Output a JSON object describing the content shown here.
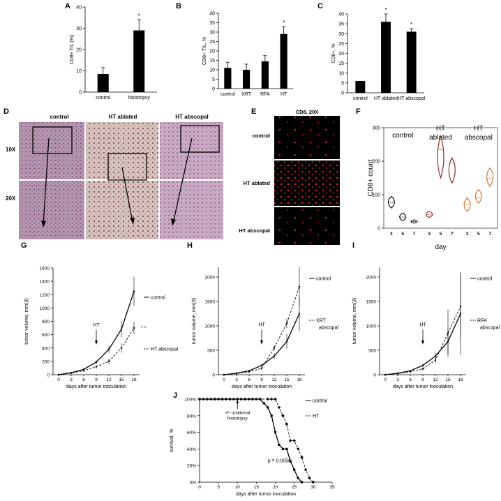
{
  "panels": {
    "A": {
      "label": "A"
    },
    "B": {
      "label": "B"
    },
    "C": {
      "label": "C"
    },
    "D": {
      "label": "D",
      "cols": [
        "control",
        "HT ablated",
        "HT abscopal"
      ],
      "rows": [
        "10X",
        "20X"
      ]
    },
    "E": {
      "label": "E",
      "title": "CD8, 20X",
      "rows": [
        "control",
        "HT ablated",
        "HT abscopal"
      ]
    },
    "F": {
      "label": "F"
    },
    "G": {
      "label": "G"
    },
    "H": {
      "label": "H"
    },
    "I": {
      "label": "I"
    },
    "J": {
      "label": "J"
    }
  },
  "chart_data": [
    {
      "id": "A",
      "type": "bar",
      "categories": [
        "control",
        "histotripsy"
      ],
      "values": [
        8.5,
        29
      ],
      "errors": [
        3,
        5
      ],
      "ylabel": "CD8+ TIL (%)",
      "ylim": [
        0,
        40
      ],
      "yticks": [
        0,
        10,
        20,
        30,
        40
      ],
      "markers": [
        "",
        "*"
      ]
    },
    {
      "id": "B",
      "type": "bar",
      "categories": [
        "control",
        "XRT",
        "RFA",
        "HT"
      ],
      "values": [
        11,
        10,
        14.5,
        29
      ],
      "errors": [
        3,
        3,
        3,
        4
      ],
      "ylabel": "CD8+ TIL, %",
      "ylim": [
        0,
        40
      ],
      "yticks": [
        0,
        5,
        10,
        15,
        20,
        25,
        30,
        35,
        40
      ],
      "markers": [
        "",
        "",
        "",
        "*"
      ]
    },
    {
      "id": "C",
      "type": "bar",
      "categories": [
        "control",
        "HT ablated",
        "HT abscopal"
      ],
      "values": [
        6,
        36,
        31
      ],
      "errors": [
        0,
        4,
        1.5
      ],
      "ylabel": "CD8+, %",
      "ylim": [
        0,
        40
      ],
      "yticks": [
        0,
        5,
        10,
        15,
        20,
        25,
        30,
        35,
        40
      ],
      "markers": [
        "",
        "*",
        "*"
      ]
    },
    {
      "id": "F",
      "type": "violin",
      "groups": [
        {
          "name": "control",
          "color": "#000000",
          "days": [
            "3",
            "5",
            "7"
          ],
          "low": [
            60,
            22,
            15
          ],
          "high": [
            95,
            45,
            25
          ],
          "mid": [
            77,
            33,
            20
          ]
        },
        {
          "name": "HT ablated",
          "color": "#8b1a1a",
          "days": [
            "3",
            "5",
            "7"
          ],
          "low": [
            32,
            150,
            135
          ],
          "high": [
            50,
            275,
            210
          ],
          "mid": [
            40,
            235,
            195
          ]
        },
        {
          "name": "HT abscopal",
          "color": "#d2691e",
          "days": [
            "3",
            "5",
            "7"
          ],
          "low": [
            50,
            75,
            125
          ],
          "high": [
            90,
            115,
            180
          ],
          "mid": [
            70,
            90,
            148
          ]
        }
      ],
      "group_titles": [
        [
          "control"
        ],
        [
          "HT",
          "ablated"
        ],
        [
          "HT",
          "abscopal"
        ]
      ],
      "ylabel": "CD8+ count",
      "xlabel": "day",
      "ylim": [
        0,
        300
      ],
      "yticks": [
        0,
        100,
        200,
        300
      ]
    },
    {
      "id": "G",
      "type": "line",
      "x": [
        0,
        3,
        6,
        9,
        12,
        15,
        18
      ],
      "series": [
        {
          "name": "control",
          "values": [
            0,
            30,
            80,
            190,
            380,
            680,
            1250
          ],
          "errors": [
            0,
            10,
            15,
            25,
            50,
            120,
            220
          ],
          "dashed": false
        },
        {
          "name": "HT abscopal",
          "values": [
            0,
            25,
            60,
            120,
            200,
            400,
            700
          ],
          "errors": [
            0,
            8,
            15,
            25,
            40,
            70,
            90
          ],
          "dashed": true
        }
      ],
      "marker": "* *",
      "annotation": "HT",
      "annotation_x": 9,
      "ylabel": "tumor volume, mm(3)",
      "xlabel": "days after tumor inoculation",
      "ylim": [
        0,
        1600
      ],
      "yticks": [
        0,
        200,
        400,
        600,
        800,
        1000,
        1200,
        1400,
        1600
      ]
    },
    {
      "id": "H",
      "type": "line",
      "x": [
        0,
        3,
        6,
        9,
        12,
        15,
        18
      ],
      "series": [
        {
          "name": "control",
          "values": [
            0,
            30,
            80,
            190,
            380,
            680,
            1250
          ],
          "errors": [
            0,
            10,
            15,
            30,
            60,
            150,
            350
          ],
          "dashed": false
        },
        {
          "name": "XRT abscopal",
          "values": [
            0,
            25,
            60,
            130,
            550,
            1050,
            1800
          ],
          "errors": [
            0,
            8,
            15,
            30,
            60,
            100,
            400
          ],
          "dashed": true
        }
      ],
      "legend_lines": [
        [
          "control"
        ],
        [
          "XRT",
          "abscopal"
        ]
      ],
      "annotation": "HT",
      "annotation_x": 9,
      "ylabel": "tumor volume, mm(3)",
      "xlabel": "days after tumor inoculation",
      "ylim": [
        0,
        2200
      ],
      "yticks": [
        0,
        500,
        1000,
        1500,
        2000
      ]
    },
    {
      "id": "I",
      "type": "line",
      "x": [
        0,
        3,
        6,
        9,
        12,
        15,
        18
      ],
      "series": [
        {
          "name": "control",
          "values": [
            0,
            30,
            80,
            190,
            380,
            680,
            1250
          ],
          "errors": [
            0,
            10,
            15,
            30,
            70,
            260,
            850
          ],
          "dashed": false
        },
        {
          "name": "RFA abscopal",
          "values": [
            0,
            25,
            60,
            120,
            300,
            850,
            1400
          ],
          "errors": [
            0,
            8,
            15,
            30,
            60,
            480,
            650
          ],
          "dashed": true
        }
      ],
      "legend_lines": [
        [
          "control"
        ],
        [
          "RFA",
          "abscopal"
        ]
      ],
      "annotation": "HT",
      "annotation_x": 9,
      "ylabel": "tumor volume, mm(3)",
      "xlabel": "days after tumor inoculation",
      "ylim": [
        0,
        2200
      ],
      "yticks": [
        0,
        500,
        1000,
        1500,
        2000
      ]
    },
    {
      "id": "J",
      "type": "line",
      "series": [
        {
          "name": "control",
          "dashed": false,
          "x": [
            0,
            1,
            2,
            3,
            4,
            5,
            6,
            7,
            8,
            9,
            10,
            11,
            12,
            13,
            14,
            15,
            16,
            17,
            18,
            19,
            20,
            21,
            22,
            23,
            24,
            25,
            26,
            27
          ],
          "values": [
            100,
            100,
            100,
            100,
            100,
            100,
            100,
            100,
            100,
            100,
            100,
            100,
            100,
            100,
            100,
            100,
            100,
            95,
            90,
            80,
            60,
            45,
            40,
            40,
            25,
            15,
            5,
            0
          ]
        },
        {
          "name": "HT",
          "dashed": true,
          "x": [
            0,
            2,
            4,
            6,
            8,
            10,
            12,
            14,
            16,
            18,
            19,
            20,
            21,
            22,
            23,
            24,
            25,
            26,
            27,
            28,
            29,
            30
          ],
          "values": [
            100,
            100,
            100,
            100,
            100,
            100,
            100,
            100,
            100,
            100,
            100,
            100,
            90,
            80,
            70,
            50,
            50,
            40,
            30,
            15,
            5,
            0
          ]
        }
      ],
      "annotation_lines": [
        "+/- unilateral",
        "histotripsy"
      ],
      "annotation_x": 10,
      "pvalue": "p = 0.0058",
      "ylabel": "survival, %",
      "xlabel": "days after tumor inoculation",
      "xlim": [
        0,
        35
      ],
      "xticks": [
        0,
        5,
        10,
        15,
        20,
        25,
        30,
        35
      ],
      "ylim": [
        0,
        100
      ],
      "yticks": [
        "0%",
        "20%",
        "40%",
        "60%",
        "80%",
        "100%"
      ]
    }
  ]
}
